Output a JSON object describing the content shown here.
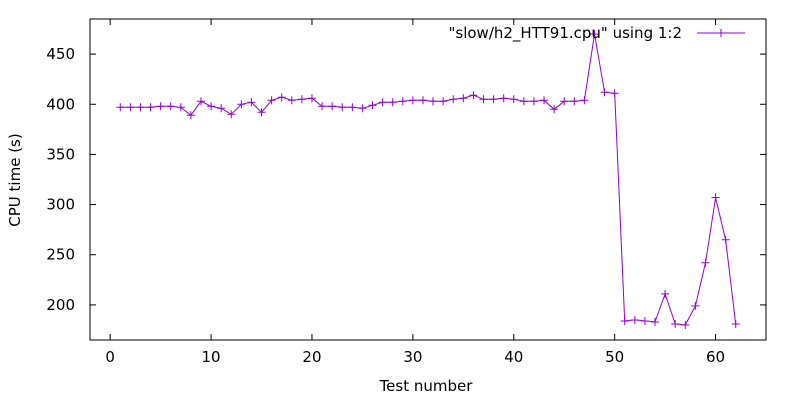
{
  "chart_data": {
    "type": "line",
    "title": "",
    "xlabel": "Test number",
    "ylabel": "CPU time (s)",
    "xlim": [
      -2,
      65
    ],
    "ylim": [
      165,
      485
    ],
    "xticks": [
      0,
      10,
      20,
      30,
      40,
      50,
      60
    ],
    "yticks": [
      200,
      250,
      300,
      350,
      400,
      450
    ],
    "grid": false,
    "legend_position": "top-right",
    "colors": {
      "series": "#9400d3",
      "axis": "#000000",
      "background": "#ffffff"
    },
    "series": [
      {
        "name": "\"slow/h2_HTT91.cpu\" using 1:2",
        "marker": "plus",
        "x": [
          1,
          2,
          3,
          4,
          5,
          6,
          7,
          8,
          9,
          10,
          11,
          12,
          13,
          14,
          15,
          16,
          17,
          18,
          19,
          20,
          21,
          22,
          23,
          24,
          25,
          26,
          27,
          28,
          29,
          30,
          31,
          32,
          33,
          34,
          35,
          36,
          37,
          38,
          39,
          40,
          41,
          42,
          43,
          44,
          45,
          46,
          47,
          48,
          49,
          50,
          51,
          52,
          53,
          54,
          55,
          56,
          57,
          58,
          59,
          60,
          61,
          62
        ],
        "values": [
          397,
          397,
          397,
          397,
          398,
          398,
          397,
          389,
          403,
          398,
          396,
          390,
          400,
          402,
          392,
          404,
          407,
          404,
          405,
          406,
          398,
          398,
          397,
          397,
          396,
          399,
          402,
          402,
          403,
          404,
          404,
          403,
          403,
          405,
          406,
          409,
          405,
          405,
          406,
          405,
          403,
          403,
          404,
          395,
          403,
          403,
          404,
          470,
          412,
          411,
          184,
          185,
          184,
          183,
          211,
          181,
          180,
          199,
          242,
          307,
          265,
          181
        ]
      }
    ]
  }
}
